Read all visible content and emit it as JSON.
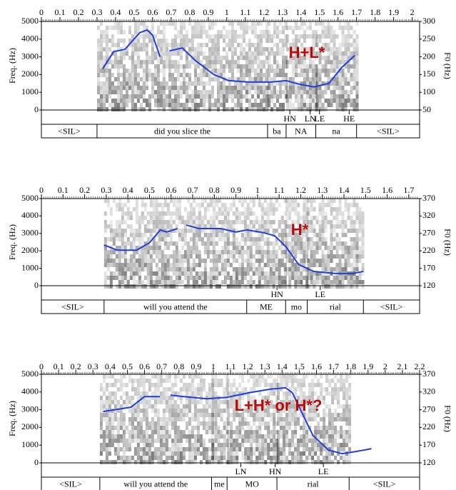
{
  "chart_data": [
    {
      "type": "spectrogram",
      "y_label": "Freq. (Hz)",
      "y2_label": "F0 (Hz)",
      "annotation": "H+L*",
      "xlim": [
        0,
        2.04
      ],
      "xticks": [
        0,
        0.1,
        0.2,
        0.3,
        0.4,
        0.5,
        0.6,
        0.7,
        0.8,
        0.9,
        1,
        1.1,
        1.2,
        1.3,
        1.4,
        1.5,
        1.6,
        1.7,
        1.8,
        1.9,
        2
      ],
      "ylim": [
        0,
        5000
      ],
      "yticks": [
        0,
        1000,
        2000,
        3000,
        4000,
        5000
      ],
      "y2lim": [
        50,
        300
      ],
      "y2ticks": [
        50,
        100,
        150,
        200,
        250,
        300
      ],
      "series": [
        {
          "name": "F0",
          "color": "#1f3fd8",
          "axis": "y2",
          "x": [
            0.33,
            0.39,
            0.45,
            0.53,
            0.57,
            0.6,
            0.64,
            null,
            0.69,
            0.76,
            0.83,
            0.93,
            1.01,
            1.12,
            1.24,
            1.32,
            1.39,
            1.47,
            1.55,
            1.62,
            1.69
          ],
          "values": [
            166,
            215,
            221,
            268,
            276,
            261,
            200,
            null,
            217,
            225,
            190,
            150,
            133,
            129,
            129,
            133,
            123,
            115,
            125,
            170,
            204
          ]
        }
      ],
      "tones": [
        {
          "label": "HN",
          "time": 1.34
        },
        {
          "label": "LN",
          "time": 1.45
        },
        {
          "label": "LE",
          "time": 1.5
        },
        {
          "label": "HE",
          "time": 1.66
        }
      ],
      "words": [
        {
          "label": "<SIL>",
          "start": 0,
          "end": 0.3
        },
        {
          "label": "did you slice the",
          "start": 0.3,
          "end": 1.22
        },
        {
          "label": "ba",
          "start": 1.22,
          "end": 1.32
        },
        {
          "label": "NA",
          "start": 1.32,
          "end": 1.48
        },
        {
          "label": "na",
          "start": 1.48,
          "end": 1.7
        },
        {
          "label": "<SIL>",
          "start": 1.7,
          "end": 2.04
        }
      ]
    },
    {
      "type": "spectrogram",
      "y_label": "Freq. (Hz)",
      "y2_label": "F0 (Hz)",
      "annotation": "H*",
      "xlim": [
        0,
        1.75
      ],
      "xticks": [
        0,
        0.1,
        0.2,
        0.3,
        0.4,
        0.5,
        0.6,
        0.7,
        0.8,
        0.9,
        1,
        1.1,
        1.2,
        1.3,
        1.4,
        1.5,
        1.6,
        1.7
      ],
      "ylim": [
        0,
        5000
      ],
      "yticks": [
        0,
        1000,
        2000,
        3000,
        4000,
        5000
      ],
      "y2lim": [
        120,
        370
      ],
      "y2ticks": [
        120,
        170,
        220,
        270,
        320,
        370
      ],
      "series": [
        {
          "name": "F0",
          "color": "#1f3fd8",
          "axis": "y2",
          "x": [
            0.29,
            0.35,
            0.44,
            0.5,
            0.55,
            0.58,
            0.63,
            null,
            0.67,
            0.73,
            0.83,
            0.9,
            0.95,
            1.03,
            1.08,
            1.13,
            1.19,
            1.26,
            1.36,
            1.44,
            1.49
          ],
          "values": [
            237,
            222,
            222,
            243,
            280,
            274,
            284,
            null,
            294,
            284,
            284,
            274,
            280,
            272,
            263,
            233,
            181,
            161,
            155,
            155,
            161
          ]
        }
      ],
      "tones": [
        {
          "label": "HN",
          "time": 1.09
        },
        {
          "label": "LE",
          "time": 1.29
        }
      ],
      "words": [
        {
          "label": "<SIL>",
          "start": 0,
          "end": 0.29
        },
        {
          "label": "will you attend the",
          "start": 0.29,
          "end": 0.95
        },
        {
          "label": "ME",
          "start": 0.95,
          "end": 1.13
        },
        {
          "label": "mo",
          "start": 1.13,
          "end": 1.23
        },
        {
          "label": "rial",
          "start": 1.23,
          "end": 1.49
        },
        {
          "label": "<SIL>",
          "start": 1.49,
          "end": 1.75
        }
      ]
    },
    {
      "type": "spectrogram",
      "y_label": "Freq. (Hz)",
      "y2_label": "F0 (Hz)",
      "annotation": "L+H* or H*?",
      "xlim": [
        0,
        2.2
      ],
      "xticks": [
        0,
        0.1,
        0.2,
        0.3,
        0.4,
        0.5,
        0.6,
        0.7,
        0.8,
        0.9,
        1,
        1.1,
        1.2,
        1.3,
        1.4,
        1.5,
        1.6,
        1.7,
        1.8,
        1.9,
        2,
        2.1,
        2.2
      ],
      "ylim": [
        0,
        5000
      ],
      "yticks": [
        0,
        1000,
        2000,
        3000,
        4000,
        5000
      ],
      "y2lim": [
        120,
        370
      ],
      "y2ticks": [
        120,
        170,
        220,
        270,
        320,
        370
      ],
      "series": [
        {
          "name": "F0",
          "color": "#1f3fd8",
          "axis": "y2",
          "x": [
            0.36,
            0.44,
            0.52,
            0.6,
            0.69,
            null,
            0.75,
            0.83,
            0.96,
            1.08,
            1.21,
            1.33,
            1.42,
            1.46,
            1.52,
            1.58,
            1.67,
            1.75,
            1.83,
            1.92
          ],
          "values": [
            265,
            271,
            277,
            307,
            307,
            null,
            311,
            307,
            301,
            305,
            318,
            328,
            332,
            318,
            257,
            197,
            156,
            146,
            152,
            160
          ]
        }
      ],
      "tones": [
        {
          "label": "LN",
          "time": 1.16
        },
        {
          "label": "HN",
          "time": 1.36
        },
        {
          "label": "LE",
          "time": 1.64
        }
      ],
      "words": [
        {
          "label": "<SIL>",
          "start": 0,
          "end": 0.34
        },
        {
          "label": "will you attend the",
          "start": 0.34,
          "end": 0.99
        },
        {
          "label": "me",
          "start": 0.99,
          "end": 1.08
        },
        {
          "label": "MO",
          "start": 1.08,
          "end": 1.37
        },
        {
          "label": "rial",
          "start": 1.37,
          "end": 1.79
        },
        {
          "label": "<SIL>",
          "start": 1.79,
          "end": 2.2
        }
      ]
    }
  ]
}
